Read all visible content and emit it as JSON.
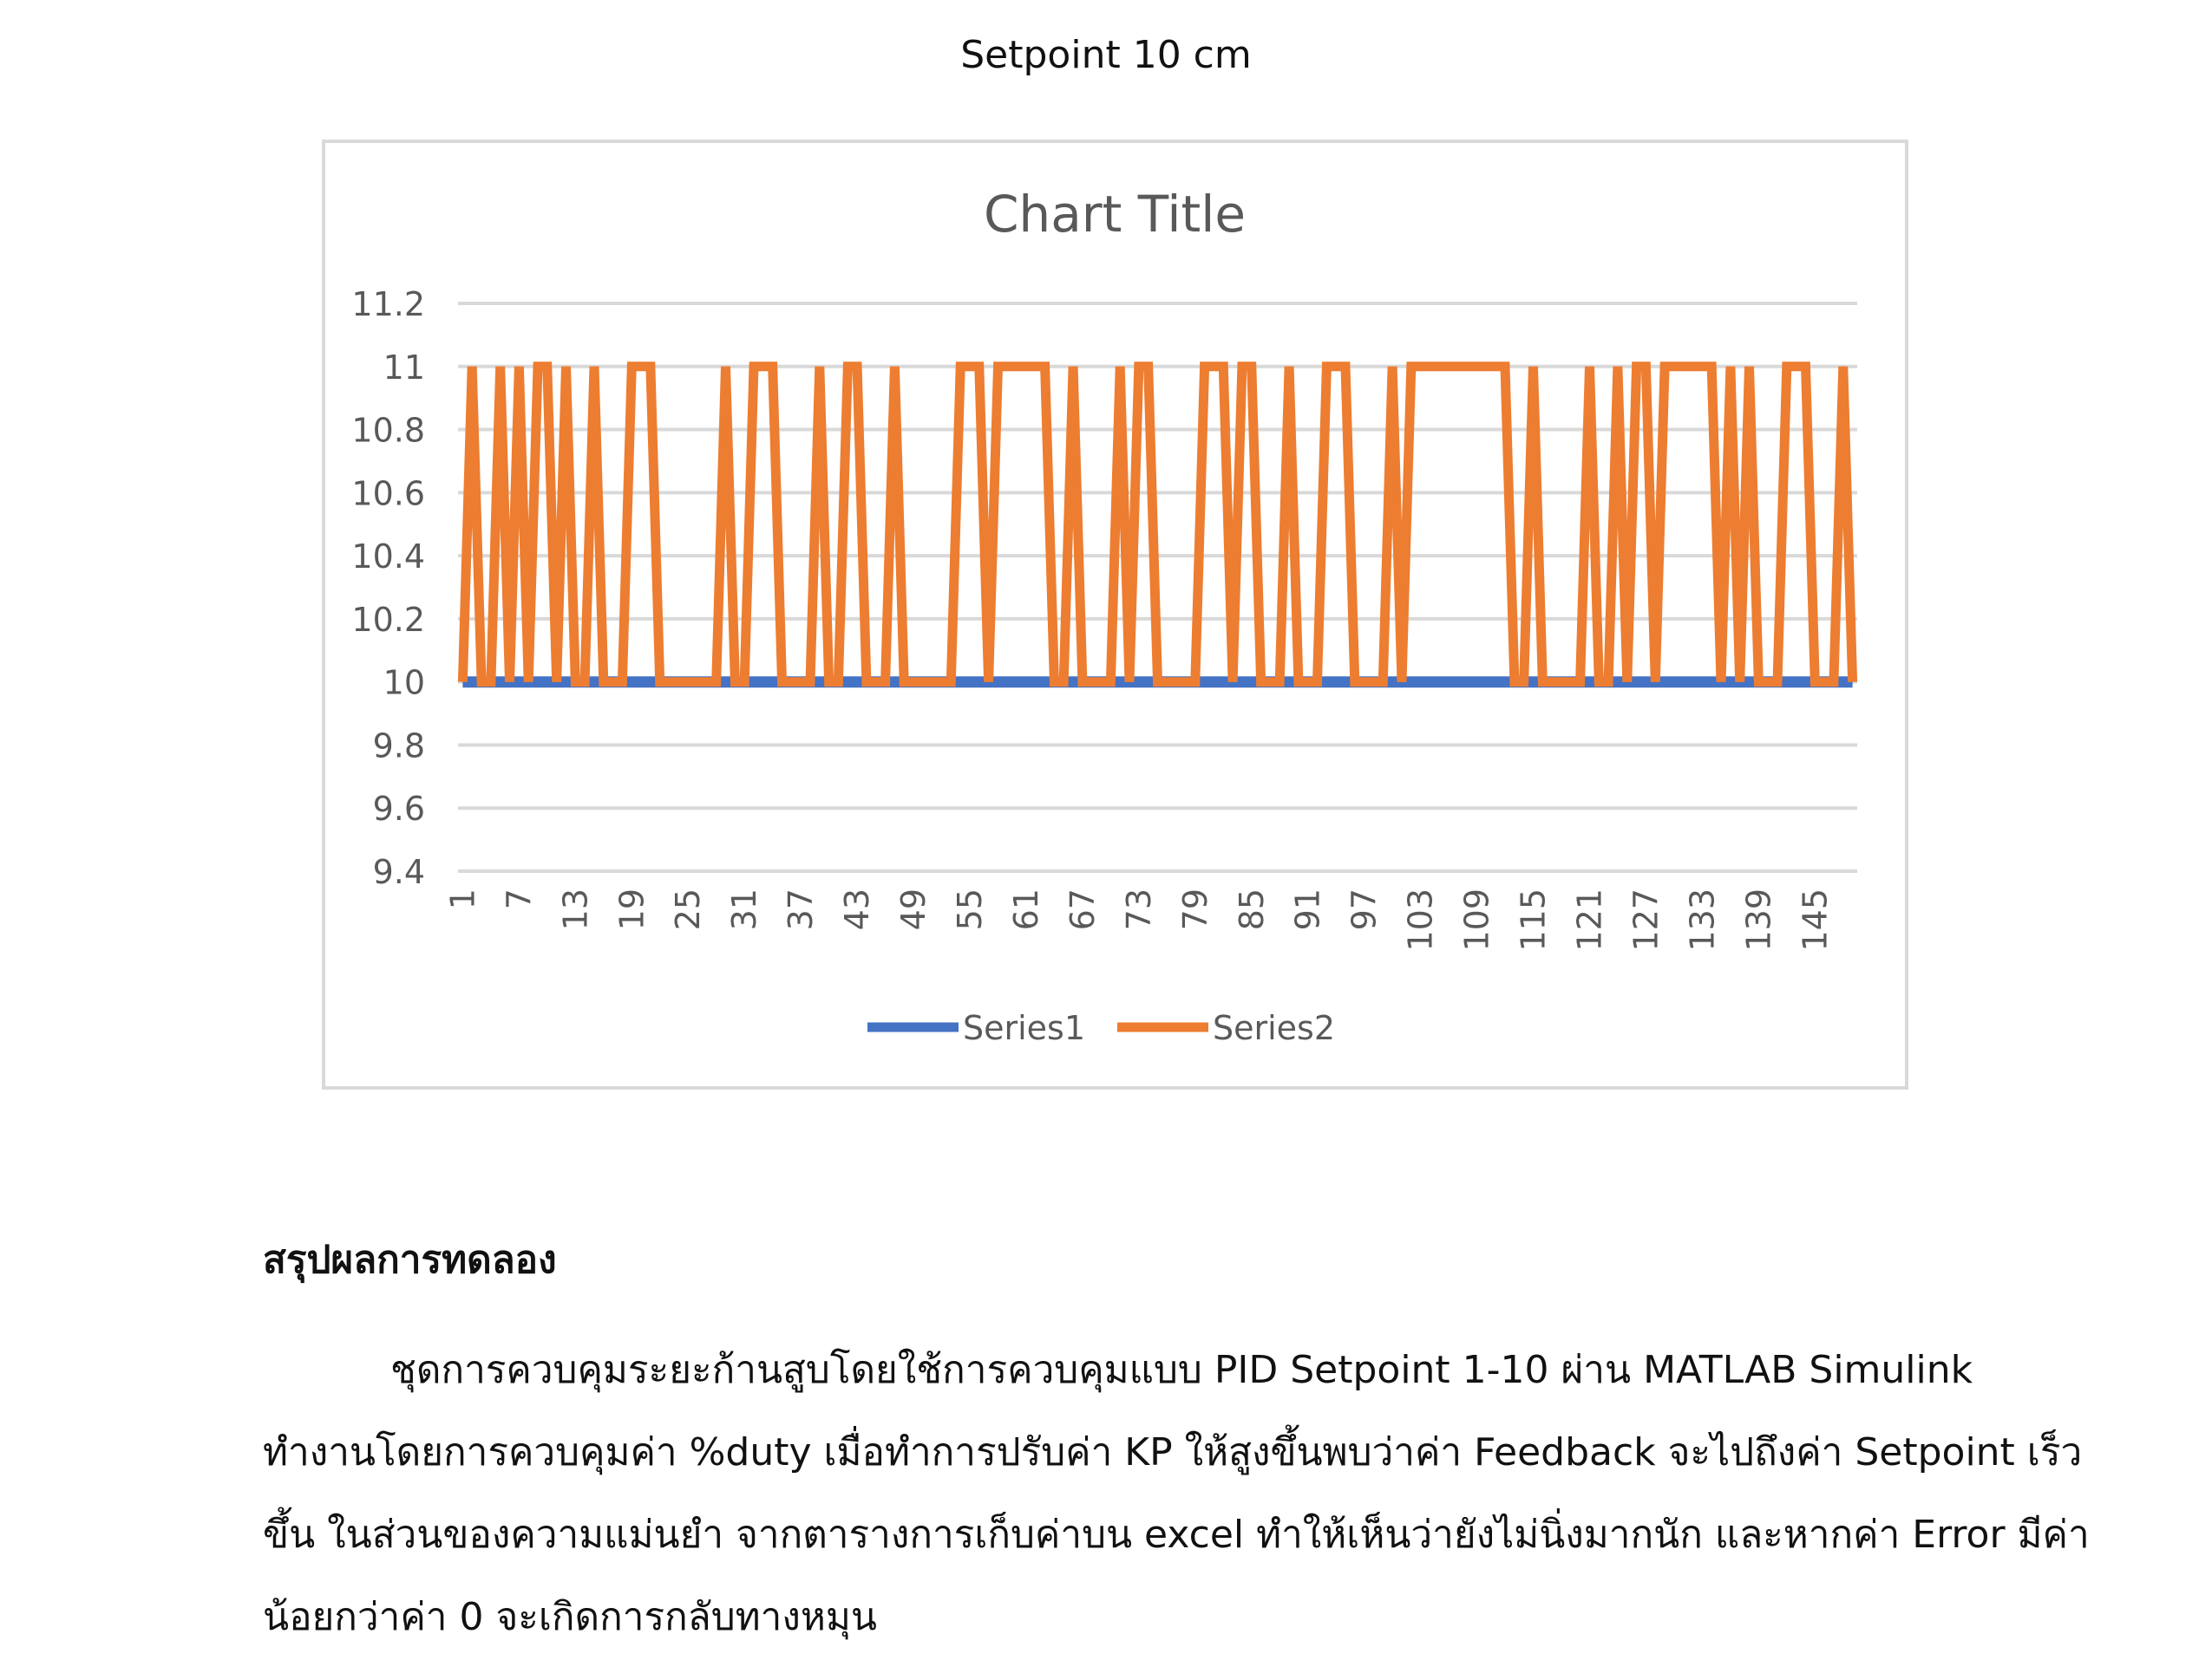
{
  "caption": "Setpoint 10 cm",
  "chart_data": {
    "type": "line",
    "title": "Chart Title",
    "xlabel": "",
    "ylabel": "",
    "ylim": [
      9.4,
      11.2
    ],
    "yticks": [
      "9.4",
      "9.6",
      "9.8",
      "10",
      "10.2",
      "10.4",
      "10.6",
      "10.8",
      "11",
      "11.2"
    ],
    "x_tick_labels": [
      "1",
      "7",
      "13",
      "19",
      "25",
      "31",
      "37",
      "43",
      "49",
      "55",
      "61",
      "67",
      "73",
      "79",
      "85",
      "91",
      "97",
      "103",
      "109",
      "115",
      "121",
      "127",
      "133",
      "139",
      "145"
    ],
    "x": [
      1,
      2,
      3,
      4,
      5,
      6,
      7,
      8,
      9,
      10,
      11,
      12,
      13,
      14,
      15,
      16,
      17,
      18,
      19,
      20,
      21,
      22,
      23,
      24,
      25,
      26,
      27,
      28,
      29,
      30,
      31,
      32,
      33,
      34,
      35,
      36,
      37,
      38,
      39,
      40,
      41,
      42,
      43,
      44,
      45,
      46,
      47,
      48,
      49,
      50,
      51,
      52,
      53,
      54,
      55,
      56,
      57,
      58,
      59,
      60,
      61,
      62,
      63,
      64,
      65,
      66,
      67,
      68,
      69,
      70,
      71,
      72,
      73,
      74,
      75,
      76,
      77,
      78,
      79,
      80,
      81,
      82,
      83,
      84,
      85,
      86,
      87,
      88,
      89,
      90,
      91,
      92,
      93,
      94,
      95,
      96,
      97,
      98,
      99,
      100,
      101,
      102,
      103,
      104,
      105,
      106,
      107,
      108,
      109,
      110,
      111,
      112,
      113,
      114,
      115,
      116,
      117,
      118,
      119,
      120,
      121,
      122,
      123,
      124,
      125,
      126,
      127,
      128,
      129,
      130,
      131,
      132,
      133,
      134,
      135,
      136,
      137,
      138,
      139,
      140,
      141,
      142,
      143,
      144,
      145,
      146,
      147,
      148,
      149
    ],
    "series": [
      {
        "name": "Series1",
        "color": "#4472c4",
        "values": [
          10,
          10,
          10,
          10,
          10,
          10,
          10,
          10,
          10,
          10,
          10,
          10,
          10,
          10,
          10,
          10,
          10,
          10,
          10,
          10,
          10,
          10,
          10,
          10,
          10,
          10,
          10,
          10,
          10,
          10,
          10,
          10,
          10,
          10,
          10,
          10,
          10,
          10,
          10,
          10,
          10,
          10,
          10,
          10,
          10,
          10,
          10,
          10,
          10,
          10,
          10,
          10,
          10,
          10,
          10,
          10,
          10,
          10,
          10,
          10,
          10,
          10,
          10,
          10,
          10,
          10,
          10,
          10,
          10,
          10,
          10,
          10,
          10,
          10,
          10,
          10,
          10,
          10,
          10,
          10,
          10,
          10,
          10,
          10,
          10,
          10,
          10,
          10,
          10,
          10,
          10,
          10,
          10,
          10,
          10,
          10,
          10,
          10,
          10,
          10,
          10,
          10,
          10,
          10,
          10,
          10,
          10,
          10,
          10,
          10,
          10,
          10,
          10,
          10,
          10,
          10,
          10,
          10,
          10,
          10,
          10,
          10,
          10,
          10,
          10,
          10,
          10,
          10,
          10,
          10,
          10,
          10,
          10,
          10,
          10,
          10,
          10,
          10,
          10,
          10,
          10,
          10,
          10,
          10,
          10,
          10,
          10,
          10,
          10
        ]
      },
      {
        "name": "Series2",
        "color": "#ed7d31",
        "values": [
          10,
          11,
          10,
          10,
          11,
          10,
          11,
          10,
          11,
          11,
          10,
          11,
          10,
          10,
          11,
          10,
          10,
          10,
          11,
          11,
          11,
          10,
          10,
          10,
          10,
          10,
          10,
          10,
          11,
          10,
          10,
          11,
          11,
          11,
          10,
          10,
          10,
          10,
          11,
          10,
          10,
          11,
          11,
          10,
          10,
          10,
          11,
          10,
          10,
          10,
          10,
          10,
          10,
          11,
          11,
          11,
          10,
          11,
          11,
          11,
          11,
          11,
          11,
          10,
          10,
          11,
          10,
          10,
          10,
          10,
          11,
          10,
          11,
          11,
          10,
          10,
          10,
          10,
          10,
          11,
          11,
          11,
          10,
          11,
          11,
          10,
          10,
          10,
          11,
          10,
          10,
          10,
          11,
          11,
          11,
          10,
          10,
          10,
          10,
          11,
          10,
          11,
          11,
          11,
          11,
          11,
          11,
          11,
          11,
          11,
          11,
          11,
          10,
          10,
          11,
          10,
          10,
          10,
          10,
          10,
          11,
          10,
          10,
          11,
          10,
          11,
          11,
          10,
          11,
          11,
          11,
          11,
          11,
          11,
          10,
          11,
          10,
          11,
          10,
          10,
          10,
          11,
          11,
          11,
          10,
          10,
          10,
          11,
          10
        ]
      }
    ],
    "legend_position": "bottom",
    "grid": true
  },
  "section": {
    "heading": "สรุปผลการทดลอง",
    "lines": [
      "ชุดการควบคุมระยะก้านสูบโดยใช้การควบคุมแบบ PID Setpoint 1-10 ผ่าน MATLAB Simulink",
      "ทำงานโดยการควบคุมค่า %duty เมื่อทำการปรับค่า KP ให้สูงขึ้นพบว่าค่า Feedback จะไปถึงค่า Setpoint เร็ว",
      "ขึ้น ในส่วนของความแม่นยำ จากตารางการเก็บค่าบน excel ทำให้เห็นว่ายังไม่นิ่งมากนัก และหากค่า Error มีค่า",
      "น้อยกว่าค่า 0 จะเกิดการกลับทางหมุน"
    ]
  }
}
